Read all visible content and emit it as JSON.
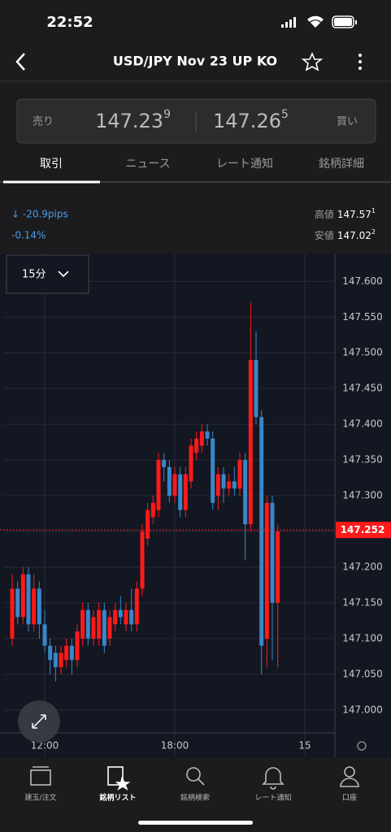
{
  "status_bar": {
    "time": "22:52"
  },
  "header": {
    "title": "USD/JPY Nov 23 UP KO"
  },
  "quote": {
    "sell_label": "売り",
    "bid": "147.23",
    "bid_pip": "9",
    "ask": "147.26",
    "ask_pip": "5",
    "buy_label": "買い"
  },
  "tabs": [
    "取引",
    "ニュース",
    "レート通知",
    "銘柄詳細"
  ],
  "summary": {
    "change": "↓ -20.9pips",
    "change_pct": "-0.14%",
    "high_label": "高値",
    "high": "147.57",
    "high_pip": "1",
    "low_label": "安値",
    "low": "147.02",
    "low_pip": "2"
  },
  "timeframe": "15分",
  "chart_data": {
    "type": "candlestick",
    "up_color": "#ff1a1a",
    "down_color": "#3a86c8",
    "grid": true,
    "x": [
      10.5,
      10.75,
      11,
      11.25,
      11.5,
      11.75,
      12,
      12.25,
      12.5,
      12.75,
      13,
      13.25,
      13.5,
      13.75,
      14,
      14.25,
      14.5,
      14.75,
      15,
      15.25,
      15.5,
      15.75,
      16,
      16.25,
      16.5,
      16.75,
      17,
      17.25,
      17.5,
      17.75,
      18,
      18.25,
      18.5,
      18.75,
      19,
      19.25,
      19.5,
      19.75,
      20,
      20.25,
      20.5,
      20.75,
      21,
      21.25,
      21.5,
      21.75,
      22,
      22.25,
      22.5,
      22.75
    ],
    "open": [
      147.1,
      147.17,
      147.13,
      147.19,
      147.12,
      147.17,
      147.12,
      147.09,
      147.08,
      147.06,
      147.07,
      147.09,
      147.07,
      147.1,
      147.14,
      147.1,
      147.1,
      147.14,
      147.1,
      147.12,
      147.14,
      147.12,
      147.14,
      147.12,
      147.17,
      147.24,
      147.27,
      147.28,
      147.35,
      147.34,
      147.3,
      147.33,
      147.28,
      147.32,
      147.36,
      147.37,
      147.39,
      147.38,
      147.3,
      147.33,
      147.31,
      147.32,
      147.31,
      147.35,
      147.26,
      147.49,
      147.41,
      147.1,
      147.29,
      147.15
    ],
    "high": [
      147.19,
      147.18,
      147.2,
      147.2,
      147.19,
      147.18,
      147.14,
      147.1,
      147.09,
      147.09,
      147.1,
      147.1,
      147.12,
      147.15,
      147.15,
      147.14,
      147.15,
      147.15,
      147.14,
      147.15,
      147.16,
      147.15,
      147.17,
      147.18,
      147.26,
      147.29,
      147.3,
      147.36,
      147.36,
      147.35,
      147.34,
      147.34,
      147.34,
      147.38,
      147.39,
      147.4,
      147.4,
      147.39,
      147.34,
      147.34,
      147.33,
      147.34,
      147.36,
      147.36,
      147.57,
      147.53,
      147.42,
      147.3,
      147.3,
      147.26
    ],
    "low": [
      147.09,
      147.12,
      147.12,
      147.11,
      147.11,
      147.1,
      147.08,
      147.05,
      147.04,
      147.05,
      147.06,
      147.05,
      147.06,
      147.09,
      147.09,
      147.09,
      147.09,
      147.08,
      147.09,
      147.11,
      147.12,
      147.11,
      147.11,
      147.11,
      147.16,
      147.23,
      147.26,
      147.27,
      147.32,
      147.29,
      147.29,
      147.27,
      147.27,
      147.31,
      147.35,
      147.36,
      147.37,
      147.28,
      147.28,
      147.29,
      147.3,
      147.3,
      147.3,
      147.21,
      147.25,
      147.4,
      147.05,
      147.06,
      147.07,
      147.06
    ],
    "close": [
      147.17,
      147.13,
      147.19,
      147.12,
      147.17,
      147.12,
      147.09,
      147.07,
      147.06,
      147.08,
      147.09,
      147.07,
      147.11,
      147.14,
      147.1,
      147.13,
      147.14,
      147.09,
      147.13,
      147.14,
      147.13,
      147.14,
      147.12,
      147.17,
      147.25,
      147.28,
      147.29,
      147.35,
      147.34,
      147.3,
      147.33,
      147.28,
      147.33,
      147.37,
      147.38,
      147.39,
      147.38,
      147.29,
      147.33,
      147.31,
      147.32,
      147.31,
      147.35,
      147.26,
      147.49,
      147.41,
      147.09,
      147.29,
      147.15,
      147.25
    ],
    "xlim": [
      10.125,
      25.3875
    ],
    "xticks": [
      {
        "value": 12,
        "label": "12:00"
      },
      {
        "value": 18,
        "label": "18:00"
      },
      {
        "value": 24,
        "label": "15"
      }
    ],
    "ylim": [
      146.968,
      147.639
    ],
    "yticks": [
      {
        "value": 147.6,
        "label": "147.600"
      },
      {
        "value": 147.55,
        "label": "147.550"
      },
      {
        "value": 147.5,
        "label": "147.500"
      },
      {
        "value": 147.45,
        "label": "147.450"
      },
      {
        "value": 147.4,
        "label": "147.400"
      },
      {
        "value": 147.35,
        "label": "147.350"
      },
      {
        "value": 147.3,
        "label": "147.300"
      },
      {
        "value": 147.25,
        "label": "147.250"
      },
      {
        "value": 147.2,
        "label": "147.200"
      },
      {
        "value": 147.15,
        "label": "147.150"
      },
      {
        "value": 147.1,
        "label": "147.100"
      },
      {
        "value": 147.05,
        "label": "147.050"
      },
      {
        "value": 147.0,
        "label": "147.000"
      }
    ],
    "last_price": 147.252,
    "last_color": "#ff1a1a"
  },
  "nav": [
    "建玉/注文",
    "銘柄リスト",
    "銘柄検索",
    "レート通知",
    "口座"
  ]
}
